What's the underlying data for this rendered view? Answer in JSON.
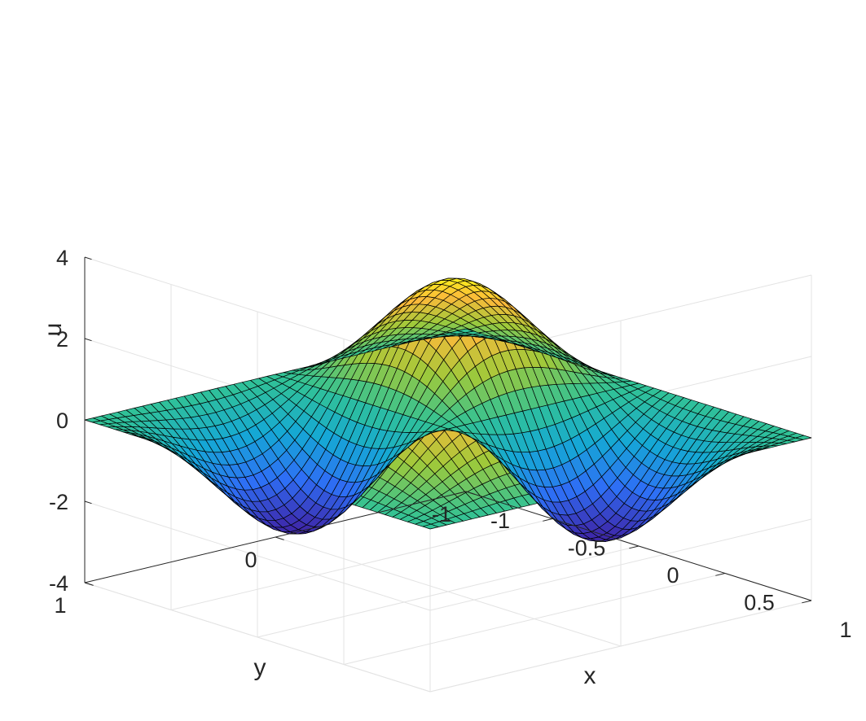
{
  "chart_data": {
    "type": "surface",
    "function": "u(x,y) = 4 * sin(pi*x) * sin(pi*y) * exp(-x^2 - y^2)",
    "xlabel": "x",
    "ylabel": "y",
    "zlabel": "u",
    "xlim": [
      -1,
      1
    ],
    "ylim": [
      -1,
      1
    ],
    "zlim": [
      -4,
      4
    ],
    "xticks": [
      {
        "value": -1,
        "label": "-1"
      },
      {
        "value": -0.5,
        "label": "-0.5"
      },
      {
        "value": 0,
        "label": "0"
      },
      {
        "value": 0.5,
        "label": "0.5"
      },
      {
        "value": 1,
        "label": "1"
      }
    ],
    "yticks": [
      {
        "value": -1,
        "label": "-1"
      },
      {
        "value": 0,
        "label": "0"
      },
      {
        "value": 1,
        "label": "1"
      }
    ],
    "zticks": [
      {
        "value": -4,
        "label": "-4"
      },
      {
        "value": -2,
        "label": "-2"
      },
      {
        "value": 0,
        "label": "0"
      },
      {
        "value": 2,
        "label": "2"
      },
      {
        "value": 4,
        "label": "4"
      }
    ],
    "grid": true,
    "colormap": [
      "#3e26a8",
      "#2e6ff5",
      "#15a8d5",
      "#31c296",
      "#9fc93a",
      "#fbba3a",
      "#f9fb15"
    ],
    "edge_color": "#000000"
  }
}
